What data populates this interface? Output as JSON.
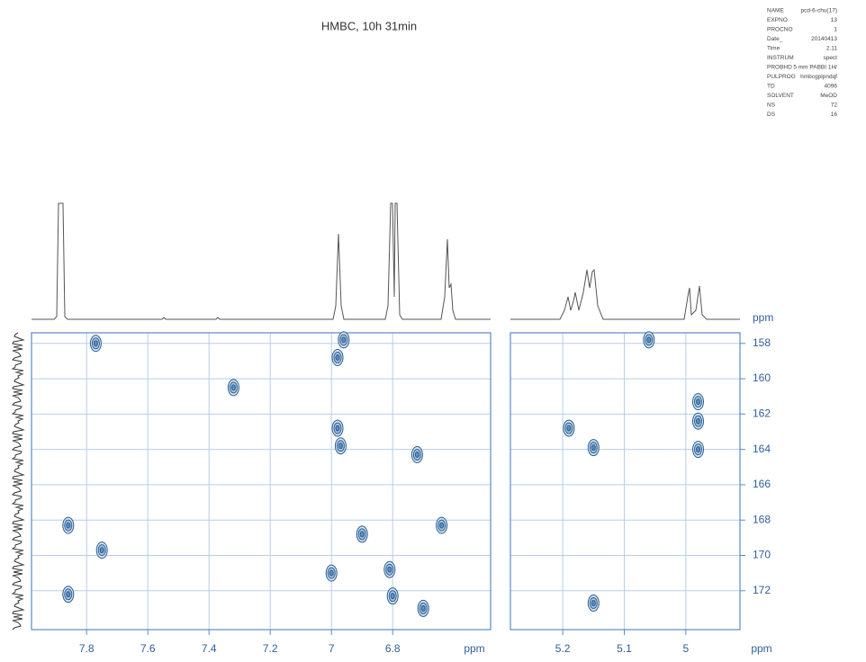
{
  "title": "HMBC, 10h 31min",
  "parameters": [
    {
      "name": "NAME",
      "value": "pcd-6-chu(17)"
    },
    {
      "name": "EXPNO",
      "value": "13"
    },
    {
      "name": "PROCNO",
      "value": "1"
    },
    {
      "name": "Date_",
      "value": "20140413"
    },
    {
      "name": "Time",
      "value": "2.11"
    },
    {
      "name": "INSTRUM",
      "value": "spect"
    },
    {
      "name": "PROBHD",
      "value": "5 mm PABBI 1H/"
    },
    {
      "name": "PULPROG",
      "value": "hmbcgplpndqf"
    },
    {
      "name": "TD",
      "value": "4096"
    },
    {
      "name": "SOLVENT",
      "value": "MeOD"
    },
    {
      "name": "NS",
      "value": "72"
    },
    {
      "name": "DS",
      "value": "16"
    }
  ],
  "chart_data": [
    {
      "type": "scatter",
      "color": "#2a5d8f",
      "x": [
        7.86,
        7.86,
        6.98,
        6.98,
        6.97,
        6.64,
        7.77,
        7.32,
        6.72,
        6.9,
        7.75,
        7.0,
        6.81,
        6.8,
        6.7,
        6.96
      ],
      "y": [
        168.3,
        172.2,
        158.8,
        162.8,
        163.8,
        168.3,
        158.0,
        160.5,
        164.3,
        168.8,
        169.7,
        171.0,
        170.8,
        172.3,
        173.0,
        157.8
      ],
      "xlim": [
        7.98,
        6.48
      ],
      "ylim": [
        157.4,
        174.2
      ],
      "xticks": [
        7.8,
        7.6,
        7.4,
        7.2,
        7.0,
        6.8
      ],
      "yticks": [
        158,
        160,
        162,
        164,
        166,
        168,
        170,
        172
      ],
      "xlabel": "ppm",
      "grid": true
    },
    {
      "type": "scatter",
      "color": "#2a5d8f",
      "x": [
        5.19,
        5.15,
        4.98,
        4.98,
        4.98,
        5.06,
        5.15
      ],
      "y": [
        162.8,
        163.9,
        161.3,
        162.4,
        164.0,
        157.8,
        172.7
      ],
      "xlim": [
        5.285,
        4.912
      ],
      "ylim": [
        157.4,
        174.2
      ],
      "xticks": [
        5.2,
        5.1,
        5.0
      ],
      "yticks": [
        158,
        160,
        162,
        164,
        166,
        168,
        170,
        172
      ],
      "xlabel": "ppm",
      "ylabel": "ppm",
      "grid": true
    }
  ]
}
